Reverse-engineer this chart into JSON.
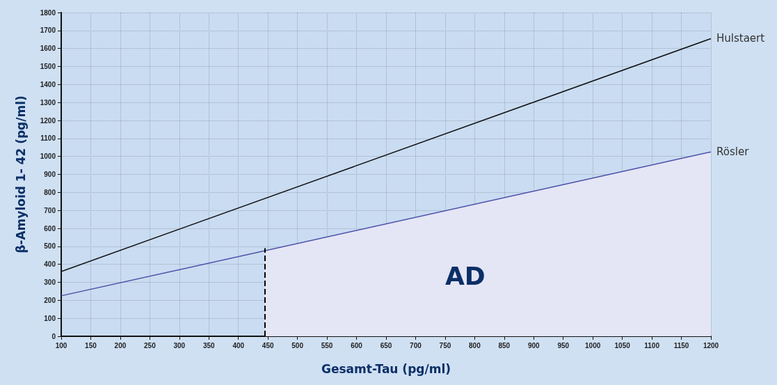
{
  "chart_data": {
    "type": "line",
    "xlabel": "Gesamt-Tau (pg/ml)",
    "ylabel": "β-Amyloid 1- 42 (pg/ml)",
    "xlim": [
      100,
      1200
    ],
    "xticks": [
      100,
      150,
      200,
      250,
      300,
      350,
      400,
      450,
      500,
      550,
      600,
      650,
      700,
      750,
      800,
      850,
      900,
      950,
      1000,
      1050,
      1100,
      1150,
      1200
    ],
    "ylim": [
      0,
      1800
    ],
    "yticks": [
      0,
      100,
      200,
      300,
      400,
      500,
      600,
      700,
      800,
      900,
      1000,
      1100,
      1200,
      1300,
      1400,
      1500,
      1600,
      1700,
      1800
    ],
    "grid": true,
    "legend": false,
    "marker": "none",
    "series": [
      {
        "type": "area",
        "x": [
          445,
          1200
        ],
        "values": [
          476,
          1025
        ],
        "color": "#e4e5f5"
      },
      {
        "name": "Hulstaert",
        "x": [
          100,
          1200
        ],
        "values": [
          360,
          1655
        ],
        "color": "#111111"
      },
      {
        "name": "Rösler",
        "x": [
          100,
          1200
        ],
        "values": [
          225,
          1025
        ],
        "color": "#4a4fa8"
      },
      {
        "x": [
          445,
          445
        ],
        "values": [
          0,
          490
        ],
        "color": "#000000",
        "line_style": "dashed"
      }
    ],
    "annotations": [
      "AD"
    ]
  }
}
